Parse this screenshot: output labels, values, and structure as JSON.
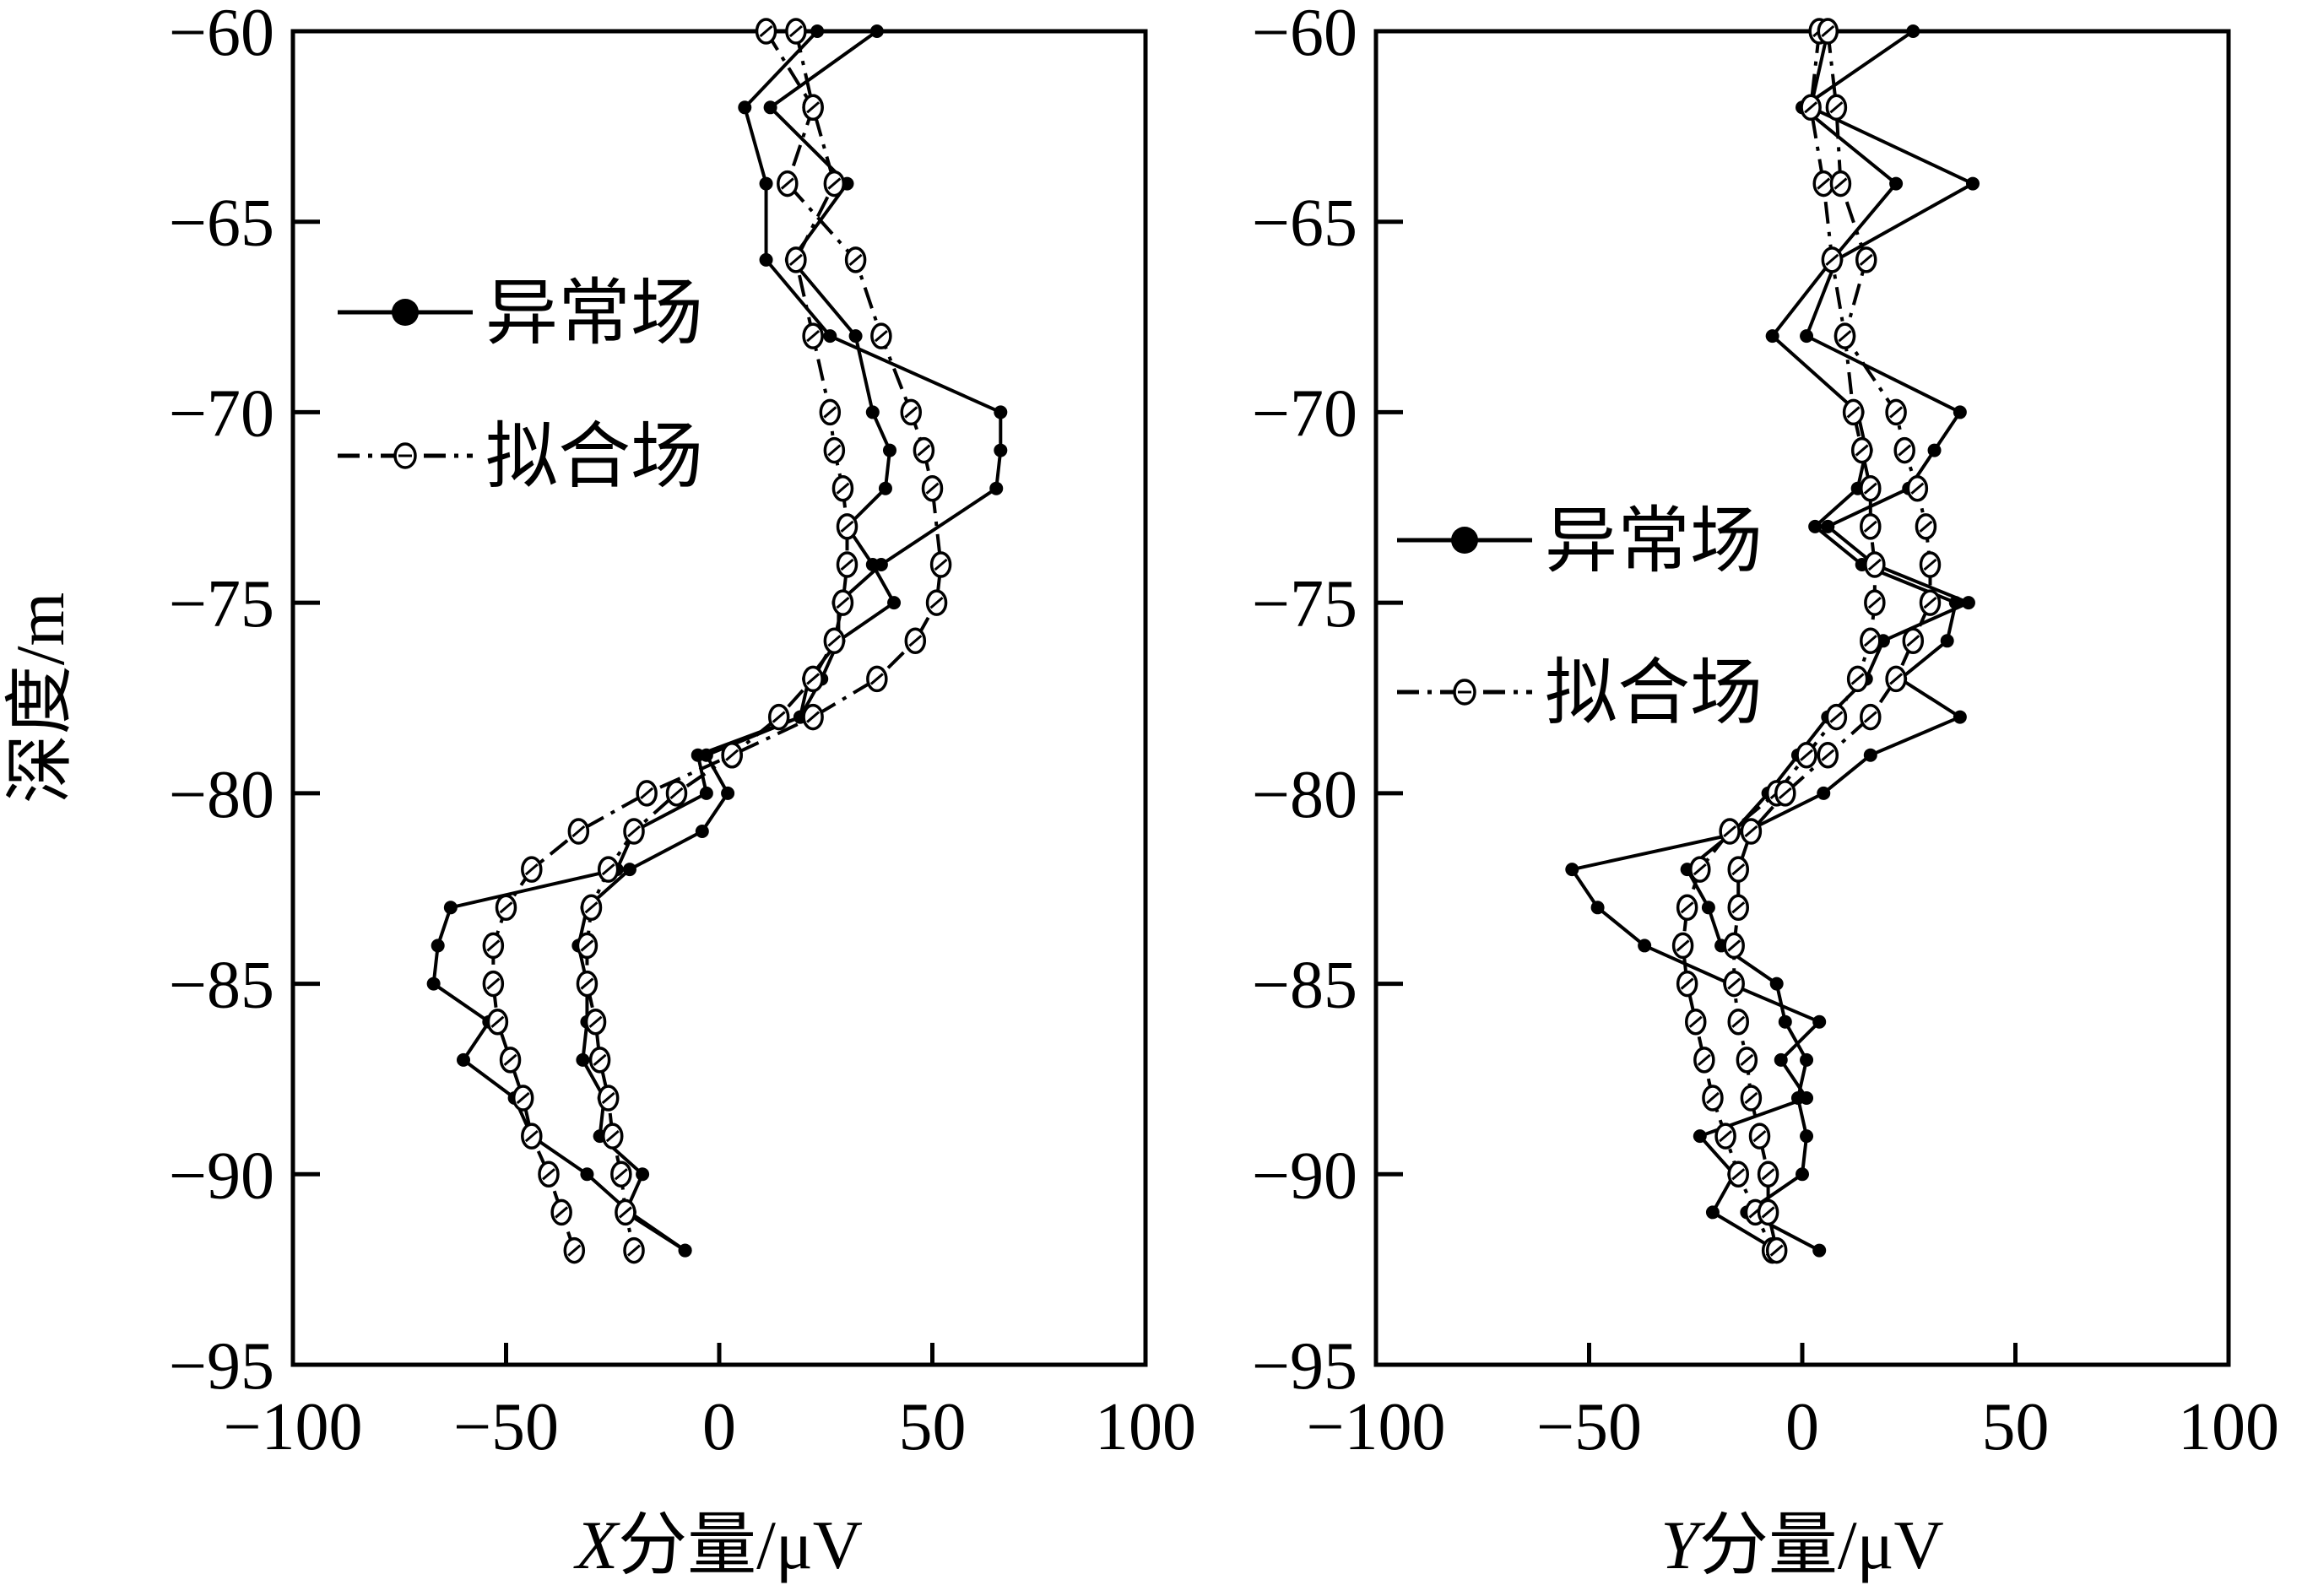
{
  "chart_data": [
    {
      "type": "line",
      "title": "",
      "xlabel": "X分量/μV",
      "xlabel_italic_part": "X",
      "xlabel_rest": "分量/μV",
      "ylabel": "深度/m",
      "xlim": [
        -100,
        100
      ],
      "ylim": [
        -95,
        -60
      ],
      "xticks": [
        -100,
        -50,
        0,
        50,
        100
      ],
      "yticks": [
        -60,
        -65,
        -70,
        -75,
        -80,
        -85,
        -90,
        -95
      ],
      "legend": {
        "position": "upper-left",
        "entries": [
          {
            "label": "异常场",
            "style": "solid-filled-dot"
          },
          {
            "label": "拟合场",
            "style": "dashdot-open-circle"
          }
        ]
      },
      "series": [
        {
          "name": "异常场",
          "style": "solid-filled-dot",
          "points": [
            [
              23,
              -60
            ],
            [
              6,
              -62
            ],
            [
              11,
              -64
            ],
            [
              11,
              -66
            ],
            [
              26,
              -68
            ],
            [
              66,
              -70
            ],
            [
              66,
              -71
            ],
            [
              65,
              -72
            ],
            [
              38,
              -74
            ],
            [
              28,
              -75
            ],
            [
              28,
              -76
            ],
            [
              21,
              -77
            ],
            [
              19,
              -78
            ],
            [
              -5,
              -79
            ],
            [
              -3,
              -80
            ],
            [
              -20,
              -81
            ],
            [
              -24,
              -82
            ],
            [
              -63,
              -83
            ],
            [
              -66,
              -84
            ],
            [
              -67,
              -85
            ],
            [
              -54,
              -86
            ],
            [
              -60,
              -87
            ],
            [
              -48,
              -88
            ],
            [
              -44,
              -89
            ],
            [
              -31,
              -90
            ],
            [
              -21,
              -91
            ],
            [
              -8,
              -92
            ]
          ]
        },
        {
          "name": "异常场",
          "style": "solid-filled-dot",
          "points": [
            [
              37,
              -60
            ],
            [
              12,
              -62
            ],
            [
              30,
              -64
            ],
            [
              17,
              -66
            ],
            [
              32,
              -68
            ],
            [
              36,
              -70
            ],
            [
              40,
              -71
            ],
            [
              39,
              -72
            ],
            [
              30,
              -73
            ],
            [
              36,
              -74
            ],
            [
              41,
              -75
            ],
            [
              28,
              -76
            ],
            [
              24,
              -77
            ],
            [
              19,
              -78
            ],
            [
              -3,
              -79
            ],
            [
              2,
              -80
            ],
            [
              -4,
              -81
            ],
            [
              -21,
              -82
            ],
            [
              -31,
              -83
            ],
            [
              -33,
              -84
            ],
            [
              -31,
              -85
            ],
            [
              -31,
              -86
            ],
            [
              -32,
              -87
            ],
            [
              -27,
              -88
            ],
            [
              -28,
              -89
            ],
            [
              -18,
              -90
            ],
            [
              -22,
              -91
            ],
            [
              -8,
              -92
            ]
          ]
        },
        {
          "name": "拟合场",
          "style": "dashdot-open-circle",
          "points": [
            [
              11,
              -60
            ],
            [
              22,
              -62
            ],
            [
              16,
              -64
            ],
            [
              32,
              -66
            ],
            [
              38,
              -68
            ],
            [
              45,
              -70
            ],
            [
              48,
              -71
            ],
            [
              50,
              -72
            ],
            [
              52,
              -74
            ],
            [
              51,
              -75
            ],
            [
              46,
              -76
            ],
            [
              37,
              -77
            ],
            [
              22,
              -78
            ],
            [
              3,
              -79
            ],
            [
              -17,
              -80
            ],
            [
              -33,
              -81
            ],
            [
              -44,
              -82
            ],
            [
              -50,
              -83
            ],
            [
              -53,
              -84
            ],
            [
              -53,
              -85
            ],
            [
              -52,
              -86
            ],
            [
              -49,
              -87
            ],
            [
              -46,
              -88
            ],
            [
              -44,
              -89
            ],
            [
              -40,
              -90
            ],
            [
              -37,
              -91
            ],
            [
              -34,
              -92
            ]
          ]
        },
        {
          "name": "拟合场",
          "style": "dashdot-open-circle",
          "points": [
            [
              18,
              -60
            ],
            [
              22,
              -62
            ],
            [
              27,
              -64
            ],
            [
              18,
              -66
            ],
            [
              22,
              -68
            ],
            [
              26,
              -70
            ],
            [
              27,
              -71
            ],
            [
              29,
              -72
            ],
            [
              30,
              -73
            ],
            [
              30,
              -74
            ],
            [
              29,
              -75
            ],
            [
              27,
              -76
            ],
            [
              22,
              -77
            ],
            [
              14,
              -78
            ],
            [
              3,
              -79
            ],
            [
              -10,
              -80
            ],
            [
              -20,
              -81
            ],
            [
              -26,
              -82
            ],
            [
              -30,
              -83
            ],
            [
              -31,
              -84
            ],
            [
              -31,
              -85
            ],
            [
              -29,
              -86
            ],
            [
              -28,
              -87
            ],
            [
              -26,
              -88
            ],
            [
              -25,
              -89
            ],
            [
              -23,
              -90
            ],
            [
              -22,
              -91
            ],
            [
              -20,
              -92
            ]
          ]
        }
      ]
    },
    {
      "type": "line",
      "title": "",
      "xlabel": "Y分量/μV",
      "xlabel_italic_part": "Y",
      "xlabel_rest": "分量/μV",
      "ylabel": "",
      "xlim": [
        -100,
        100
      ],
      "ylim": [
        -95,
        -60
      ],
      "xticks": [
        -100,
        -50,
        0,
        50,
        100
      ],
      "yticks": [
        -60,
        -65,
        -70,
        -75,
        -80,
        -85,
        -90,
        -95
      ],
      "legend": {
        "position": "middle-left",
        "entries": [
          {
            "label": "异常场",
            "style": "solid-filled-dot"
          },
          {
            "label": "拟合场",
            "style": "dashdot-open-circle"
          }
        ]
      },
      "series": [
        {
          "name": "异常场",
          "style": "solid-filled-dot",
          "points": [
            [
              26,
              -60
            ],
            [
              0,
              -62
            ],
            [
              22,
              -64
            ],
            [
              7,
              -66
            ],
            [
              -7,
              -68
            ],
            [
              13,
              -70
            ],
            [
              15,
              -71
            ],
            [
              13,
              -72
            ],
            [
              3,
              -73
            ],
            [
              14,
              -74
            ],
            [
              36,
              -75
            ],
            [
              34,
              -76
            ],
            [
              23,
              -77
            ],
            [
              37,
              -78
            ],
            [
              16,
              -79
            ],
            [
              5,
              -80
            ],
            [
              -13,
              -81
            ],
            [
              -54,
              -82
            ],
            [
              -48,
              -83
            ],
            [
              -37,
              -84
            ],
            [
              -17,
              -85
            ],
            [
              4,
              -86
            ],
            [
              -5,
              -87
            ],
            [
              1,
              -88
            ],
            [
              -24,
              -89
            ],
            [
              -16,
              -90
            ],
            [
              -21,
              -91
            ],
            [
              -6,
              -92
            ]
          ]
        },
        {
          "name": "异常场",
          "style": "solid-filled-dot",
          "points": [
            [
              6,
              -60
            ],
            [
              2,
              -62
            ],
            [
              40,
              -64
            ],
            [
              8,
              -66
            ],
            [
              1,
              -68
            ],
            [
              37,
              -70
            ],
            [
              31,
              -71
            ],
            [
              25,
              -72
            ],
            [
              6,
              -73
            ],
            [
              17,
              -74
            ],
            [
              39,
              -75
            ],
            [
              19,
              -76
            ],
            [
              15,
              -77
            ],
            [
              6,
              -78
            ],
            [
              -1,
              -79
            ],
            [
              -8,
              -80
            ],
            [
              -16,
              -81
            ],
            [
              -27,
              -82
            ],
            [
              -22,
              -83
            ],
            [
              -19,
              -84
            ],
            [
              -6,
              -85
            ],
            [
              -4,
              -86
            ],
            [
              1,
              -87
            ],
            [
              -1,
              -88
            ],
            [
              1,
              -89
            ],
            [
              0,
              -90
            ],
            [
              -13,
              -91
            ],
            [
              4,
              -92
            ]
          ]
        },
        {
          "name": "拟合场",
          "style": "dashdot-open-circle",
          "points": [
            [
              4,
              -60
            ],
            [
              2,
              -62
            ],
            [
              5,
              -64
            ],
            [
              7,
              -66
            ],
            [
              10,
              -68
            ],
            [
              12,
              -70
            ],
            [
              14,
              -71
            ],
            [
              16,
              -72
            ],
            [
              16,
              -73
            ],
            [
              17,
              -74
            ],
            [
              17,
              -75
            ],
            [
              16,
              -76
            ],
            [
              13,
              -77
            ],
            [
              8,
              -78
            ],
            [
              1,
              -79
            ],
            [
              -6,
              -80
            ],
            [
              -17,
              -81
            ],
            [
              -24,
              -82
            ],
            [
              -27,
              -83
            ],
            [
              -28,
              -84
            ],
            [
              -27,
              -85
            ],
            [
              -25,
              -86
            ],
            [
              -23,
              -87
            ],
            [
              -21,
              -88
            ],
            [
              -18,
              -89
            ],
            [
              -15,
              -90
            ],
            [
              -11,
              -91
            ],
            [
              -7,
              -92
            ]
          ]
        },
        {
          "name": "拟合场",
          "style": "dashdot-open-circle",
          "points": [
            [
              6,
              -60
            ],
            [
              8,
              -62
            ],
            [
              9,
              -64
            ],
            [
              15,
              -66
            ],
            [
              10,
              -68
            ],
            [
              22,
              -70
            ],
            [
              24,
              -71
            ],
            [
              27,
              -72
            ],
            [
              29,
              -73
            ],
            [
              30,
              -74
            ],
            [
              30,
              -75
            ],
            [
              26,
              -76
            ],
            [
              22,
              -77
            ],
            [
              16,
              -78
            ],
            [
              6,
              -79
            ],
            [
              -4,
              -80
            ],
            [
              -12,
              -81
            ],
            [
              -15,
              -82
            ],
            [
              -15,
              -83
            ],
            [
              -16,
              -84
            ],
            [
              -16,
              -85
            ],
            [
              -15,
              -86
            ],
            [
              -13,
              -87
            ],
            [
              -12,
              -88
            ],
            [
              -10,
              -89
            ],
            [
              -8,
              -90
            ],
            [
              -8,
              -91
            ],
            [
              -6,
              -92
            ]
          ]
        }
      ]
    }
  ]
}
